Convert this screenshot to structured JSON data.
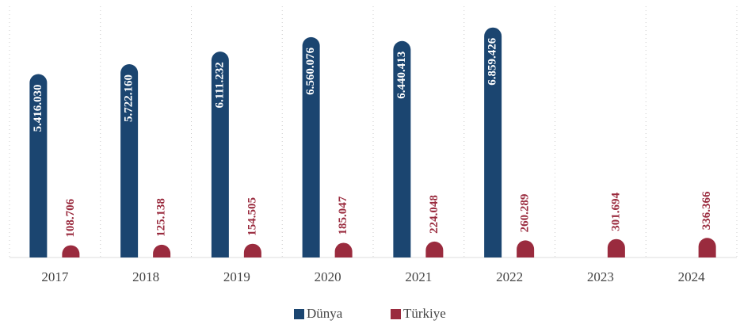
{
  "chart_data": {
    "type": "bar",
    "categories": [
      "2017",
      "2018",
      "2019",
      "2020",
      "2021",
      "2022",
      "2023",
      "2024"
    ],
    "series": [
      {
        "name": "Dünya",
        "color": "#1b4570",
        "values": [
          5416030,
          5722160,
          6111232,
          6560076,
          6440413,
          6859426,
          null,
          null
        ],
        "value_labels": [
          "5.416.030",
          "5.722.160",
          "6.111.232",
          "6.560.076",
          "6.440.413",
          "6.859.426",
          null,
          null
        ]
      },
      {
        "name": "Türkiye",
        "color": "#9a2b3e",
        "values": [
          108706,
          125138,
          154505,
          185047,
          224048,
          260289,
          301694,
          336366
        ],
        "value_labels": [
          "108.706",
          "125.138",
          "154.505",
          "185.047",
          "224.048",
          "260.289",
          "301.694",
          "336.366"
        ]
      }
    ],
    "ylim": [
      0,
      7000000
    ]
  }
}
